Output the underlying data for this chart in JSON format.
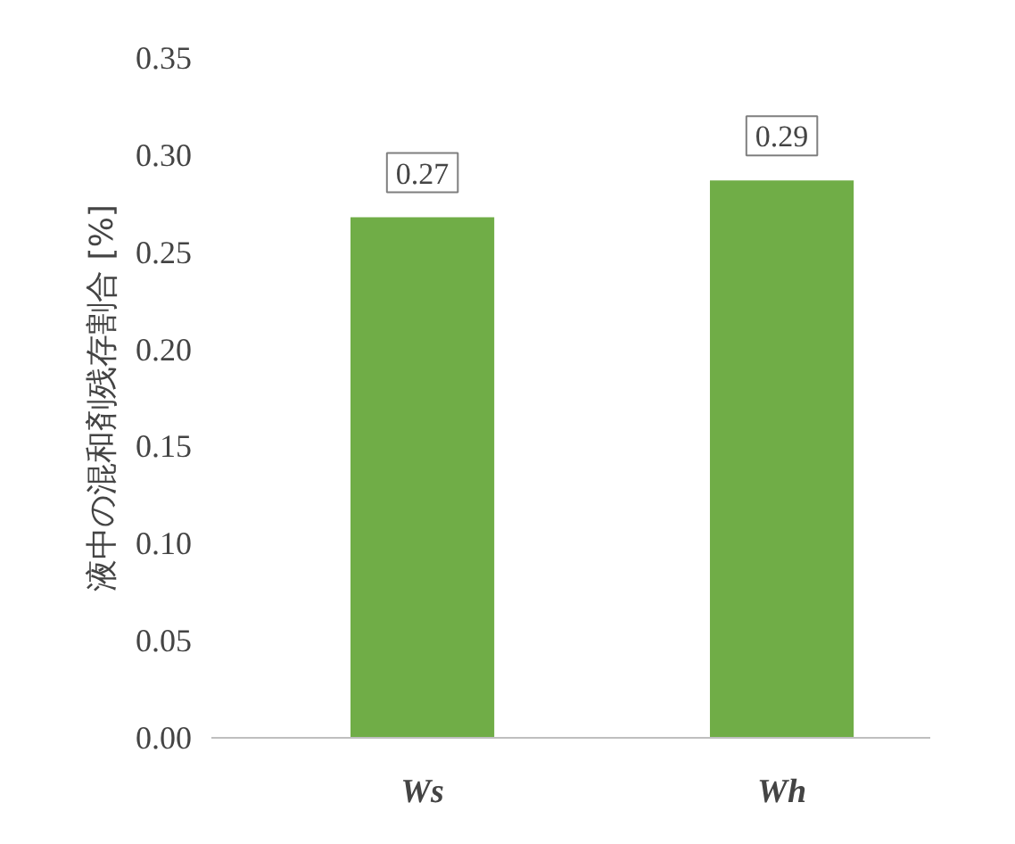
{
  "chart_data": {
    "type": "bar",
    "ylabel": "液中の混和剤残存割合 [%]",
    "categories": [
      "Ws",
      "Wh"
    ],
    "values": [
      0.268,
      0.287
    ],
    "value_labels": [
      "0.27",
      "0.29"
    ],
    "color": "#70ad47",
    "ylim": [
      0,
      0.35
    ],
    "yticks": [
      {
        "value": 0,
        "label": "0.00"
      },
      0.05,
      {
        "value": 0.1,
        "label": "0.10"
      },
      0.15,
      {
        "value": 0.2,
        "label": "0.20"
      },
      0.25,
      {
        "value": 0.3,
        "label": "0.30"
      },
      0.35
    ],
    "grid": false
  }
}
